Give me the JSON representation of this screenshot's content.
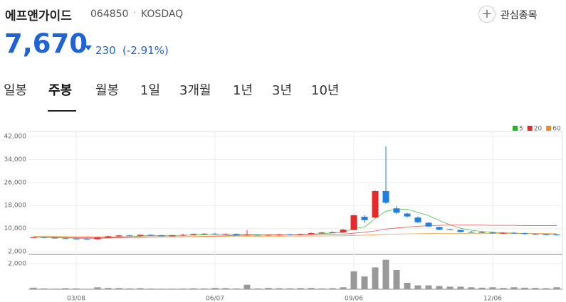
{
  "header": {
    "name": "에프앤가이드",
    "code": "064850",
    "market": "KOSDAQ",
    "price": "7,670",
    "change": "230",
    "change_pct": "(-2.91%)",
    "watch_button": "관심종목"
  },
  "tabs": [
    "일봉",
    "주봉",
    "월봉",
    "1일",
    "3개월",
    "1년",
    "3년",
    "10년"
  ],
  "active_tab": 1,
  "chart_data": {
    "type": "candlestick",
    "categories": [
      null,
      null,
      null,
      null,
      "03/08",
      null,
      null,
      null,
      null,
      null,
      null,
      null,
      null,
      null,
      null,
      null,
      null,
      "06/07",
      null,
      null,
      null,
      null,
      null,
      null,
      null,
      null,
      null,
      null,
      null,
      null,
      "09/06",
      null,
      null,
      null,
      null,
      null,
      null,
      null,
      null,
      null,
      null,
      null,
      null,
      "12/06",
      null,
      null,
      null,
      null,
      null,
      null
    ],
    "open": [
      7000,
      7000,
      6800,
      6600,
      6500,
      6400,
      6300,
      6900,
      7300,
      7600,
      7500,
      7800,
      7600,
      7500,
      7600,
      7800,
      8100,
      8200,
      8000,
      8100,
      7700,
      7800,
      7700,
      7800,
      7900,
      7800,
      8100,
      8400,
      8600,
      8700,
      9500,
      14100,
      13800,
      23000,
      17000,
      15200,
      13800,
      12000,
      10500,
      9700,
      9500,
      8800,
      8700,
      8600,
      8300,
      8500,
      8400,
      8100,
      8000,
      7900
    ],
    "high": [
      7100,
      7100,
      6900,
      6800,
      6700,
      6700,
      7000,
      7500,
      7800,
      7900,
      8000,
      8000,
      7800,
      7800,
      8100,
      8300,
      8400,
      8500,
      8300,
      8300,
      9500,
      8000,
      7900,
      8100,
      8100,
      8200,
      8600,
      8800,
      9000,
      9900,
      14800,
      14600,
      23200,
      38500,
      17800,
      15500,
      14200,
      12300,
      10600,
      9900,
      9600,
      9200,
      9100,
      8900,
      8700,
      8800,
      8600,
      8400,
      8200,
      8100
    ],
    "low": [
      6900,
      6700,
      6500,
      6400,
      6300,
      6200,
      6200,
      6800,
      7100,
      7300,
      7300,
      7500,
      7400,
      7300,
      7400,
      7600,
      7800,
      7900,
      7800,
      7600,
      7500,
      7500,
      7500,
      7600,
      7700,
      7600,
      7900,
      8200,
      8400,
      8600,
      9400,
      11900,
      13600,
      18600,
      15000,
      13800,
      11800,
      10500,
      9400,
      9400,
      8600,
      8500,
      8400,
      8200,
      8100,
      8200,
      7900,
      7800,
      7700,
      7600
    ],
    "close": [
      7000,
      6800,
      6600,
      6500,
      6400,
      6300,
      6900,
      7300,
      7600,
      7500,
      7800,
      7600,
      7500,
      7600,
      7800,
      8100,
      8200,
      8000,
      8100,
      7700,
      7800,
      7700,
      7800,
      7900,
      7800,
      8100,
      8400,
      8600,
      8700,
      9600,
      14600,
      12900,
      23000,
      19000,
      15500,
      14200,
      12200,
      10700,
      9600,
      9600,
      8800,
      8700,
      8600,
      8300,
      8500,
      8400,
      8100,
      8000,
      7900,
      7670
    ],
    "up_color": "#e8282b",
    "down_color": "#1f7fe0",
    "ma": [
      {
        "name": "5",
        "color": "#22b722",
        "values": [
          7000,
          6950,
          6850,
          6750,
          6650,
          6500,
          6550,
          6700,
          6900,
          7100,
          7450,
          7550,
          7600,
          7600,
          7650,
          7700,
          7850,
          8000,
          8050,
          8000,
          7950,
          7850,
          7800,
          7800,
          7850,
          7900,
          8050,
          8250,
          8450,
          8650,
          10000,
          10500,
          13500,
          16000,
          16800,
          16700,
          15600,
          14500,
          12800,
          11300,
          10100,
          9400,
          9000,
          8700,
          8500,
          8400,
          8300,
          8200,
          8100,
          8000
        ]
      },
      {
        "name": "20",
        "color": "#e8282b",
        "values": [
          7000,
          7000,
          6950,
          6900,
          6850,
          6800,
          6800,
          6800,
          6850,
          6900,
          6950,
          7000,
          7050,
          7100,
          7150,
          7200,
          7300,
          7400,
          7500,
          7600,
          7700,
          7700,
          7750,
          7800,
          7800,
          7850,
          7900,
          7950,
          8000,
          8050,
          8400,
          8700,
          9200,
          9800,
          10200,
          10500,
          10800,
          11000,
          11100,
          11200,
          11200,
          11200,
          11200,
          11100,
          11100,
          11100,
          11000,
          11000,
          11000,
          11000
        ]
      },
      {
        "name": "60",
        "color": "#f08a1c",
        "values": [
          7300,
          7280,
          7260,
          7240,
          7220,
          7200,
          7180,
          7170,
          7160,
          7150,
          7150,
          7150,
          7160,
          7170,
          7180,
          7200,
          7220,
          7240,
          7260,
          7280,
          7300,
          7320,
          7340,
          7360,
          7380,
          7400,
          7420,
          7440,
          7460,
          7480,
          7600,
          7700,
          7850,
          8000,
          8100,
          8150,
          8200,
          8250,
          8300,
          8300,
          8300,
          8300,
          8300,
          8300,
          8300,
          8300,
          8250,
          8250,
          8250,
          8200
        ]
      }
    ],
    "ylim": [
      2000,
      42000
    ],
    "yticks": [
      {
        "value": 2000,
        "label": "2,000"
      },
      {
        "value": 10000,
        "label": "10,000"
      },
      {
        "value": 18000,
        "label": "18,000"
      },
      {
        "value": 26000,
        "label": "26,000"
      },
      {
        "value": 34000,
        "label": "34,000"
      },
      {
        "value": 42000,
        "label": "42,000"
      }
    ],
    "volume": [
      120,
      60,
      40,
      80,
      60,
      30,
      150,
      100,
      90,
      60,
      80,
      50,
      40,
      40,
      50,
      70,
      60,
      100,
      90,
      60,
      350,
      60,
      100,
      80,
      70,
      90,
      100,
      60,
      80,
      150,
      1400,
      1000,
      1700,
      2300,
      1500,
      500,
      300,
      300,
      250,
      200,
      200,
      150,
      120,
      150,
      100,
      150,
      120,
      100,
      80,
      150
    ],
    "volume_color": "#999999",
    "y2lim": [
      0,
      2500
    ],
    "y2ticks": [
      {
        "value": 2000,
        "label": "2,000"
      }
    ]
  }
}
